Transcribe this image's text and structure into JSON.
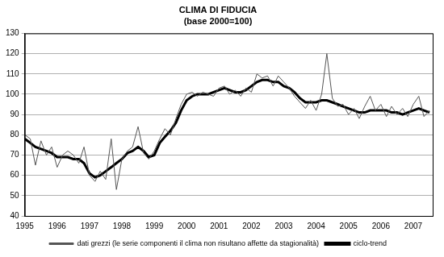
{
  "chart_data": {
    "type": "line",
    "title": "CLIMA DI FIDUCIA",
    "subtitle": "(base 2000=100)",
    "x": [
      1995,
      1995.17,
      1995.33,
      1995.5,
      1995.67,
      1995.83,
      1996,
      1996.17,
      1996.33,
      1996.5,
      1996.67,
      1996.83,
      1997,
      1997.17,
      1997.33,
      1997.5,
      1997.67,
      1997.83,
      1998,
      1998.17,
      1998.33,
      1998.5,
      1998.67,
      1998.83,
      1999,
      1999.17,
      1999.33,
      1999.5,
      1999.67,
      1999.83,
      2000,
      2000.17,
      2000.33,
      2000.5,
      2000.67,
      2000.83,
      2001,
      2001.17,
      2001.33,
      2001.5,
      2001.67,
      2001.83,
      2002,
      2002.17,
      2002.33,
      2002.5,
      2002.67,
      2002.83,
      2003,
      2003.17,
      2003.33,
      2003.5,
      2003.67,
      2003.83,
      2004,
      2004.17,
      2004.33,
      2004.5,
      2004.67,
      2004.83,
      2005,
      2005.17,
      2005.33,
      2005.5,
      2005.67,
      2005.83,
      2006,
      2006.17,
      2006.33,
      2006.5,
      2006.67,
      2006.83,
      2007,
      2007.17,
      2007.33,
      2007.5
    ],
    "series": [
      {
        "name": "dati grezzi (le serie componenti il clima non risultano affette da stagionalità)",
        "color": "#555555",
        "values": [
          80,
          78,
          65,
          77,
          70,
          74,
          64,
          70,
          72,
          70,
          66,
          74,
          60,
          57,
          62,
          58,
          78,
          53,
          68,
          72,
          74,
          84,
          71,
          68,
          72,
          78,
          83,
          80,
          88,
          95,
          100,
          101,
          99,
          101,
          100,
          99,
          103,
          104,
          100,
          102,
          99,
          103,
          101,
          110,
          108,
          109,
          104,
          109,
          106,
          103,
          99,
          96,
          93,
          97,
          92,
          100,
          120,
          98,
          94,
          95,
          90,
          93,
          88,
          94,
          99,
          92,
          95,
          89,
          94,
          90,
          93,
          89,
          95,
          99,
          89,
          92
        ]
      },
      {
        "name": "ciclo-trend",
        "color": "#000000",
        "values": [
          78,
          76,
          74,
          73,
          72,
          71,
          69,
          69,
          69,
          68,
          68,
          66,
          61,
          59,
          60,
          62,
          64,
          66,
          68,
          71,
          72,
          74,
          72,
          69,
          70,
          76,
          79,
          82,
          86,
          92,
          97,
          99,
          100,
          100,
          100,
          101,
          102,
          103,
          102,
          101,
          101,
          102,
          104,
          106,
          107,
          107,
          106,
          106,
          104,
          103,
          101,
          98,
          96,
          96,
          96,
          97,
          97,
          96,
          95,
          94,
          93,
          92,
          91,
          91,
          92,
          92,
          92,
          92,
          91,
          91,
          90,
          91,
          92,
          93,
          92,
          91
        ]
      }
    ],
    "xlim": [
      1995,
      2007.6
    ],
    "xticks": [
      1995,
      1996,
      1997,
      1998,
      1999,
      2000,
      2001,
      2002,
      2003,
      2004,
      2005,
      2006,
      2007
    ],
    "ylim": [
      40,
      130
    ],
    "yticks": [
      40,
      50,
      60,
      70,
      80,
      90,
      100,
      110,
      120,
      130
    ],
    "grid": "y",
    "legend": "bottom"
  }
}
